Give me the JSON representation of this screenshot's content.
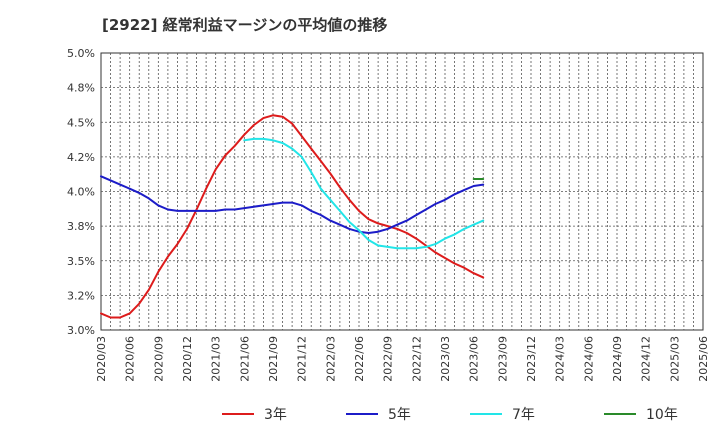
{
  "chart_data": {
    "type": "line",
    "title": "[2922]  経常利益マージンの平均値の推移",
    "xlabel": "",
    "ylabel": "",
    "x_ticks": [
      "2020/03",
      "2020/06",
      "2020/09",
      "2020/12",
      "2021/03",
      "2021/06",
      "2021/09",
      "2021/12",
      "2022/03",
      "2022/06",
      "2022/09",
      "2022/12",
      "2023/03",
      "2023/06",
      "2023/09",
      "2023/12",
      "2024/03",
      "2024/06",
      "2024/09",
      "2024/12",
      "2025/03",
      "2025/06"
    ],
    "y_ticks": [
      "3.0%",
      "3.2%",
      "3.5%",
      "3.8%",
      "4.0%",
      "4.2%",
      "4.5%",
      "4.8%",
      "5.0%"
    ],
    "ylim": [
      3.0,
      5.0
    ],
    "grid": true,
    "legend_position": "bottom",
    "series": [
      {
        "name": "3年",
        "color": "#dd1c1c",
        "values": [
          3.12,
          3.09,
          3.09,
          3.12,
          3.19,
          3.29,
          3.42,
          3.53,
          3.62,
          3.73,
          3.87,
          4.02,
          4.16,
          4.26,
          4.33,
          4.41,
          4.48,
          4.53,
          4.55,
          4.54,
          4.49,
          4.4,
          4.31,
          4.22,
          4.13,
          4.03,
          3.94,
          3.86,
          3.8,
          3.77,
          3.75,
          3.73,
          3.7,
          3.66,
          3.61,
          3.56,
          3.52,
          3.48,
          3.45,
          3.41,
          3.38
        ]
      },
      {
        "name": "5年",
        "color": "#1c1cc8",
        "values": [
          4.11,
          4.08,
          4.05,
          4.02,
          3.99,
          3.95,
          3.9,
          3.87,
          3.86,
          3.86,
          3.86,
          3.86,
          3.86,
          3.87,
          3.87,
          3.88,
          3.89,
          3.9,
          3.91,
          3.92,
          3.92,
          3.9,
          3.86,
          3.83,
          3.79,
          3.76,
          3.73,
          3.71,
          3.7,
          3.71,
          3.73,
          3.76,
          3.79,
          3.83,
          3.87,
          3.91,
          3.94,
          3.98,
          4.01,
          4.04,
          4.05
        ]
      },
      {
        "name": "7年",
        "color": "#22e5e8",
        "values": [
          null,
          null,
          null,
          null,
          null,
          null,
          null,
          null,
          null,
          null,
          null,
          null,
          null,
          null,
          null,
          4.37,
          4.38,
          4.38,
          4.37,
          4.35,
          4.31,
          4.25,
          4.14,
          4.02,
          3.94,
          3.86,
          3.78,
          3.72,
          3.65,
          3.61,
          3.6,
          3.59,
          3.59,
          3.59,
          3.6,
          3.62,
          3.66,
          3.69,
          3.73,
          3.76,
          3.79
        ]
      },
      {
        "name": "10年",
        "color": "#2a8a2a",
        "values": [
          null,
          null,
          null,
          null,
          null,
          null,
          null,
          null,
          null,
          null,
          null,
          null,
          null,
          null,
          null,
          null,
          null,
          null,
          null,
          null,
          null,
          null,
          null,
          null,
          null,
          null,
          null,
          null,
          null,
          null,
          null,
          null,
          null,
          null,
          null,
          null,
          null,
          null,
          null,
          4.09,
          4.09
        ]
      }
    ]
  }
}
